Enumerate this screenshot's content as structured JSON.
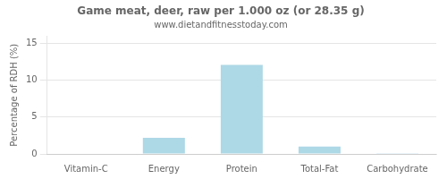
{
  "chart_data": {
    "type": "bar",
    "title": "Game meat, deer, raw per 1.000 oz (or 28.35 g)",
    "subtitle": "www.dietandfitnesstoday.com",
    "categories": [
      "Vitamin-C",
      "Energy",
      "Protein",
      "Total-Fat",
      "Carbohydrate"
    ],
    "values": [
      0,
      2.2,
      12.1,
      1.0,
      0.1
    ],
    "color": "#add8e6",
    "ylabel": "Percentage of RDH (%)",
    "ylim": [
      0,
      16
    ],
    "yticks": [
      0,
      5,
      10,
      15
    ],
    "grid": true
  }
}
